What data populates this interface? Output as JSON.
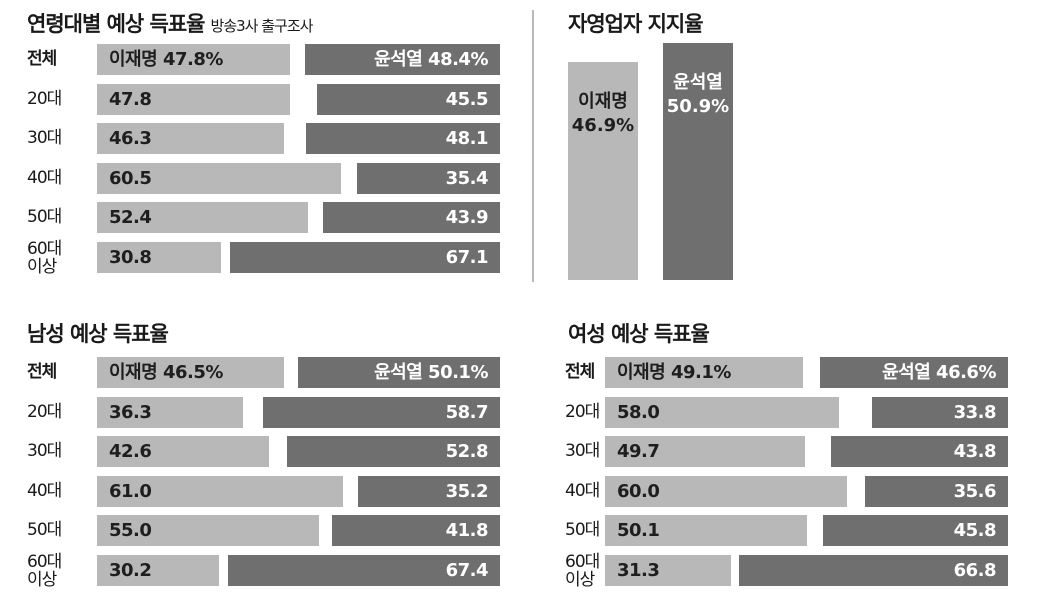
{
  "chart_data": [
    {
      "type": "bar",
      "stacked": true,
      "orientation": "horizontal",
      "title": "연령대별 예상 득표율",
      "subtitle": "방송3사 출구조사",
      "categories": [
        "전체",
        "20대",
        "30대",
        "40대",
        "50대",
        "60대\n이상"
      ],
      "series": [
        {
          "name": "이재명",
          "values": [
            47.8,
            47.8,
            46.3,
            60.5,
            52.4,
            30.8
          ]
        },
        {
          "name": "윤석열",
          "values": [
            48.4,
            45.5,
            48.1,
            35.4,
            43.9,
            67.1
          ]
        }
      ],
      "labels_a": [
        "이재명 47.8%",
        "47.8",
        "46.3",
        "60.5",
        "52.4",
        "30.8"
      ],
      "labels_b": [
        "윤석열 48.4%",
        "45.5",
        "48.1",
        "35.4",
        "43.9",
        "67.1"
      ],
      "colors": [
        "#b8b8b8",
        "#6f6f6f"
      ]
    },
    {
      "type": "bar",
      "orientation": "vertical",
      "title": "자영업자 지지율",
      "categories": [
        "이재명",
        "윤석열"
      ],
      "values": [
        46.9,
        50.9
      ],
      "labels": [
        "이재명\n46.9%",
        "윤석열\n50.9%"
      ],
      "colors": [
        "#b8b8b8",
        "#6f6f6f"
      ]
    },
    {
      "type": "bar",
      "stacked": true,
      "orientation": "horizontal",
      "title": "남성 예상 득표율",
      "categories": [
        "전체",
        "20대",
        "30대",
        "40대",
        "50대",
        "60대\n이상"
      ],
      "series": [
        {
          "name": "이재명",
          "values": [
            46.5,
            36.3,
            42.6,
            61.0,
            55.0,
            30.2
          ]
        },
        {
          "name": "윤석열",
          "values": [
            50.1,
            58.7,
            52.8,
            35.2,
            41.8,
            67.4
          ]
        }
      ],
      "labels_a": [
        "이재명 46.5%",
        "36.3",
        "42.6",
        "61.0",
        "55.0",
        "30.2"
      ],
      "labels_b": [
        "윤석열 50.1%",
        "58.7",
        "52.8",
        "35.2",
        "41.8",
        "67.4"
      ],
      "colors": [
        "#b8b8b8",
        "#6f6f6f"
      ]
    },
    {
      "type": "bar",
      "stacked": true,
      "orientation": "horizontal",
      "title": "여성 예상 득표율",
      "categories": [
        "전체",
        "20대",
        "30대",
        "40대",
        "50대",
        "60대\n이상"
      ],
      "series": [
        {
          "name": "이재명",
          "values": [
            49.1,
            58.0,
            49.7,
            60.0,
            50.1,
            31.3
          ]
        },
        {
          "name": "윤석열",
          "values": [
            46.6,
            33.8,
            43.8,
            35.6,
            45.8,
            66.8
          ]
        }
      ],
      "labels_a": [
        "이재명 49.1%",
        "58.0",
        "49.7",
        "60.0",
        "50.1",
        "31.3"
      ],
      "labels_b": [
        "윤석열 46.6%",
        "33.8",
        "43.8",
        "35.6",
        "45.8",
        "66.8"
      ],
      "colors": [
        "#b8b8b8",
        "#6f6f6f"
      ]
    }
  ]
}
